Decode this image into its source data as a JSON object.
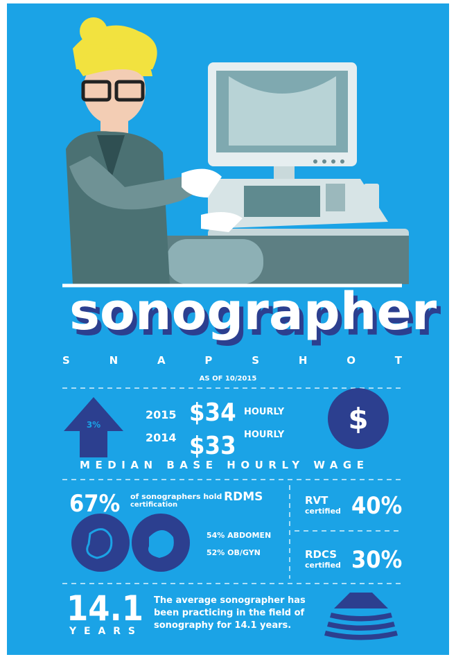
{
  "header": {
    "title": "sonographer",
    "subtitle": "SNAPSHOT",
    "date": "AS OF 10/2015"
  },
  "wage": {
    "change": "3%",
    "rows": [
      {
        "year": "2015",
        "amount": "$34",
        "unit": "HOURLY"
      },
      {
        "year": "2014",
        "amount": "$33",
        "unit": "HOURLY"
      }
    ],
    "icon": "$",
    "caption": "MEDIAN BASE HOURLY WAGE"
  },
  "certification": {
    "rdms": {
      "percent": "67%",
      "text": "of sonographers hold",
      "name": "RDMS",
      "detail": "certification"
    },
    "specialties": [
      "54% ABDOMEN",
      "52% OB/GYN"
    ],
    "rvt": {
      "name": "RVT",
      "detail": "certified",
      "percent": "40%"
    },
    "rdcs": {
      "name": "RDCS",
      "detail": "certified",
      "percent": "30%"
    }
  },
  "experience": {
    "value": "14.1",
    "unit": "YEARS",
    "lines": [
      "The average sonographer has",
      "been practicing in the field of",
      "sonography for 14.1  years."
    ]
  }
}
